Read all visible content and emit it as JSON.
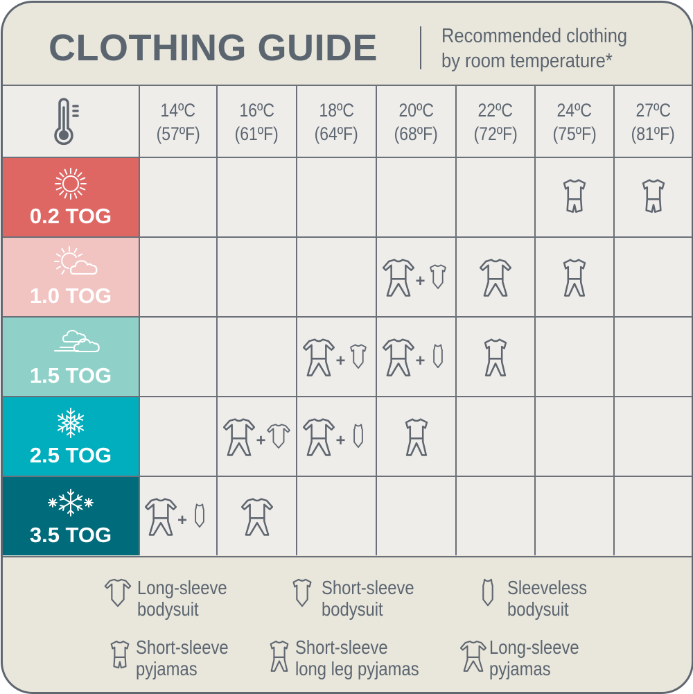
{
  "header": {
    "title": "CLOTHING GUIDE",
    "subtitle_line1": "Recommended clothing",
    "subtitle_line2": "by room temperature*"
  },
  "colors": {
    "border": "#5f6670",
    "text": "#5b6570",
    "background": "#e9e6db",
    "cell": "#efedea"
  },
  "temperatures": [
    {
      "c": "14ºC",
      "f": "(57ºF)"
    },
    {
      "c": "16ºC",
      "f": "(61ºF)"
    },
    {
      "c": "18ºC",
      "f": "(64ºF)"
    },
    {
      "c": "20ºC",
      "f": "(68ºF)"
    },
    {
      "c": "22ºC",
      "f": "(72ºF)"
    },
    {
      "c": "24ºC",
      "f": "(75ºF)"
    },
    {
      "c": "27ºC",
      "f": "(81ºF)"
    }
  ],
  "header_icon": "thermometer-icon",
  "rows": [
    {
      "label": "0.2 TOG",
      "color": "#de6764",
      "icon": "sun-icon",
      "cells": [
        [],
        [],
        [],
        [],
        [],
        [
          "short-sleeve-pyjamas"
        ],
        [
          "short-sleeve-pyjamas"
        ]
      ]
    },
    {
      "label": "1.0 TOG",
      "color": "#f1c3c1",
      "icon": "sun-cloud-icon",
      "cells": [
        [],
        [],
        [],
        [
          "long-sleeve-pyjamas",
          "short-sleeve-bodysuit"
        ],
        [
          "long-sleeve-pyjamas"
        ],
        [
          "short-sleeve-long-leg-pyjamas"
        ],
        []
      ]
    },
    {
      "label": "1.5 TOG",
      "color": "#8fd1c8",
      "icon": "wind-cloud-icon",
      "cells": [
        [],
        [],
        [
          "long-sleeve-pyjamas",
          "short-sleeve-bodysuit"
        ],
        [
          "long-sleeve-pyjamas",
          "sleeveless-bodysuit"
        ],
        [
          "short-sleeve-long-leg-pyjamas"
        ],
        [],
        []
      ]
    },
    {
      "label": "2.5 TOG",
      "color": "#00aebd",
      "icon": "snowflake-icon",
      "cells": [
        [],
        [
          "long-sleeve-pyjamas",
          "long-sleeve-bodysuit"
        ],
        [
          "long-sleeve-pyjamas",
          "sleeveless-bodysuit"
        ],
        [
          "short-sleeve-long-leg-pyjamas"
        ],
        [],
        [],
        []
      ]
    },
    {
      "label": "3.5 TOG",
      "color": "#006b7a",
      "icon": "snowflakes-icon",
      "cells": [
        [
          "long-sleeve-pyjamas",
          "sleeveless-bodysuit"
        ],
        [
          "long-sleeve-pyjamas"
        ],
        [],
        [],
        [],
        [],
        []
      ]
    }
  ],
  "legend": [
    {
      "icon": "long-sleeve-bodysuit",
      "line1": "Long-sleeve",
      "line2": "bodysuit"
    },
    {
      "icon": "short-sleeve-bodysuit",
      "line1": "Short-sleeve",
      "line2": "bodysuit"
    },
    {
      "icon": "sleeveless-bodysuit",
      "line1": "Sleeveless",
      "line2": "bodysuit"
    },
    {
      "icon": "short-sleeve-pyjamas",
      "line1": "Short-sleeve",
      "line2": "pyjamas"
    },
    {
      "icon": "short-sleeve-long-leg-pyjamas",
      "line1": "Short-sleeve",
      "line2": "long leg pyjamas"
    },
    {
      "icon": "long-sleeve-pyjamas",
      "line1": "Long-sleeve",
      "line2": "pyjamas"
    }
  ]
}
